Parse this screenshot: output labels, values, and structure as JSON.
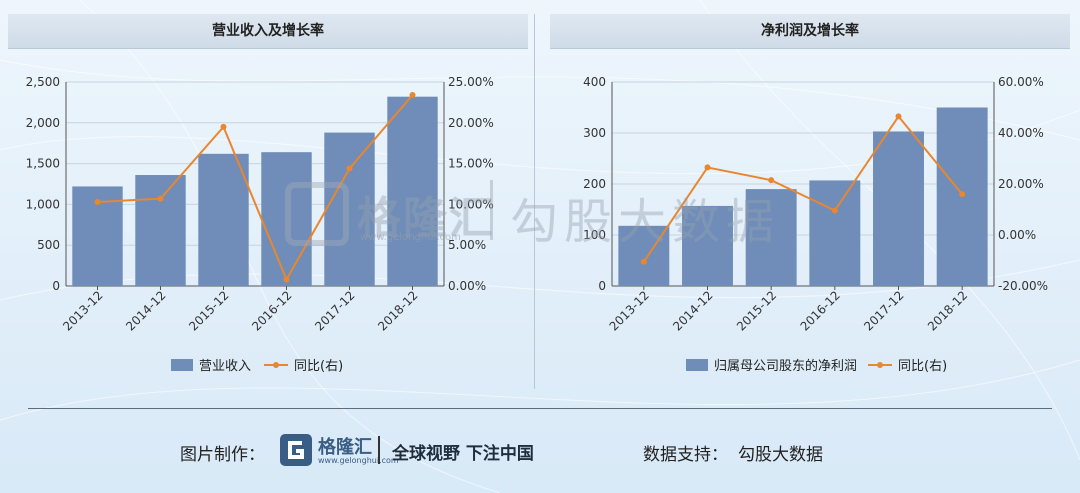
{
  "colors": {
    "bar": "#6f8db8",
    "line": "#e9862e",
    "header_bg": "#d7e2ed"
  },
  "left_panel": {
    "title": "营业收入及增长率"
  },
  "right_panel": {
    "title": "净利润及增长率"
  },
  "watermark": {
    "brand": "格隆汇",
    "url": "www.gelonghui.com",
    "text": "勾股大数据"
  },
  "footer": {
    "made_by_label": "图片制作：",
    "logo_text": "格隆汇",
    "logo_url": "www.gelonghui.com",
    "slogan": "全球视野 下注中国",
    "support_label": "数据支持：",
    "support_value": "勾股大数据"
  },
  "chart_data": [
    {
      "type": "bar",
      "title": "营业收入及增长率",
      "categories": [
        "2013-12",
        "2014-12",
        "2015-12",
        "2016-12",
        "2017-12",
        "2018-12"
      ],
      "series": [
        {
          "name": "营业收入",
          "type": "bar",
          "axis": "left",
          "values": [
            1220,
            1360,
            1620,
            1640,
            1880,
            2320
          ]
        },
        {
          "name": "同比(右)",
          "type": "line",
          "axis": "right",
          "values": [
            10.3,
            10.7,
            19.5,
            0.8,
            14.4,
            23.4
          ]
        }
      ],
      "left_axis": {
        "ticks": [
          "0",
          "500",
          "1,000",
          "1,500",
          "2,000",
          "2,500"
        ],
        "ylim": [
          0,
          2500
        ]
      },
      "right_axis": {
        "ticks": [
          "0.00%",
          "5.00%",
          "10.00%",
          "15.00%",
          "20.00%",
          "25.00%"
        ],
        "ylim": [
          0,
          25
        ]
      },
      "legend_position": "bottom"
    },
    {
      "type": "bar",
      "title": "净利润及增长率",
      "categories": [
        "2013-12",
        "2014-12",
        "2015-12",
        "2016-12",
        "2017-12",
        "2018-12"
      ],
      "series": [
        {
          "name": "归属母公司股东的净利润",
          "type": "bar",
          "axis": "left",
          "values": [
            118,
            157,
            190,
            207,
            303,
            350
          ]
        },
        {
          "name": "同比(右)",
          "type": "line",
          "axis": "right",
          "values": [
            -10.5,
            26.5,
            21.5,
            9.6,
            46.5,
            16.0
          ]
        }
      ],
      "left_axis": {
        "ticks": [
          "0",
          "100",
          "200",
          "300",
          "400"
        ],
        "ylim": [
          0,
          400
        ]
      },
      "right_axis": {
        "ticks": [
          "-20.00%",
          "0.00%",
          "20.00%",
          "40.00%",
          "60.00%"
        ],
        "ylim": [
          -20,
          60
        ]
      },
      "legend_position": "bottom"
    }
  ]
}
